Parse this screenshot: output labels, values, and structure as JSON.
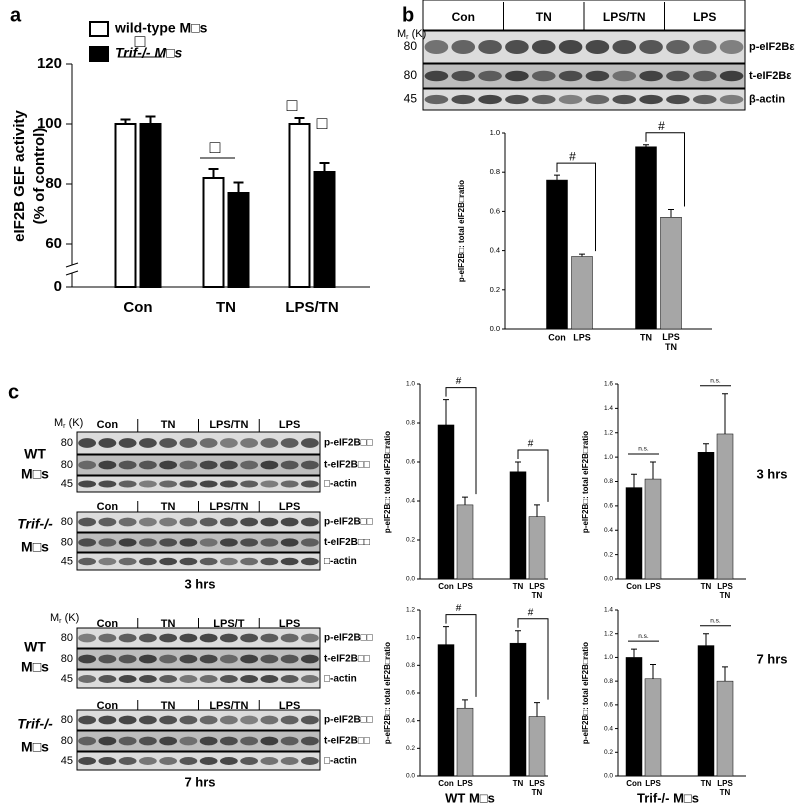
{
  "panel_labels": [
    "a",
    "b",
    "c"
  ],
  "chart_data": [
    {
      "type": "grouped_bar",
      "y_label": [
        "eIF2B GEF activity",
        "(% of control)"
      ],
      "categories": [
        "Con",
        "TN",
        "LPS/TN"
      ],
      "series": [
        {
          "name": "wild-type M□s",
          "color": "#ffffff",
          "values": [
            100,
            82,
            100
          ],
          "errors": [
            1.5,
            3,
            2
          ]
        },
        {
          "name": "Trif-/- M□s",
          "color": "#000000",
          "values": [
            100,
            77,
            84
          ],
          "errors": [
            2.5,
            3.5,
            3
          ]
        }
      ],
      "ylim": [
        0,
        120
      ],
      "yticks": [
        0,
        60,
        80,
        100,
        120
      ],
      "axis_break": true,
      "annotations": [
        "□",
        "□",
        "□",
        "□"
      ]
    },
    {
      "type": "bar",
      "y_label": "p-eIF2B□: total eIF2B□ratio",
      "categories": [
        "Con",
        "LPS",
        "TN",
        "LPS TN"
      ],
      "values": [
        0.76,
        0.37,
        0.93,
        0.57
      ],
      "errors": [
        0.025,
        0.012,
        0.01,
        0.04
      ],
      "colors": [
        "#000000",
        "#a6a6a6",
        "#000000",
        "#a6a6a6"
      ],
      "ylim": [
        0,
        1
      ],
      "yticks": [
        {
          "value": 0,
          "label": "0.0"
        },
        {
          "value": 0.2,
          "label": "0.2"
        },
        {
          "value": 0.4,
          "label": "0.4"
        },
        {
          "value": 0.6,
          "label": "0.6"
        },
        {
          "value": 0.8,
          "label": "0.8"
        },
        {
          "value": 1,
          "label": "1.0"
        }
      ],
      "annotations": [
        "#",
        "#"
      ]
    },
    {
      "type": "bar",
      "y_label": "p-eIF2B□: total eIF2B□ratio",
      "categories": [
        "Con",
        "LPS",
        "TN",
        "LPS TN"
      ],
      "values": [
        0.79,
        0.38,
        0.55,
        0.32
      ],
      "errors": [
        0.13,
        0.04,
        0.05,
        0.06
      ],
      "colors": [
        "#000000",
        "#a6a6a6",
        "#000000",
        "#a6a6a6"
      ],
      "ylim": [
        0,
        1
      ],
      "yticks": [
        {
          "value": 0,
          "label": "0.0"
        },
        {
          "value": 0.2,
          "label": "0.2"
        },
        {
          "value": 0.4,
          "label": "0.4"
        },
        {
          "value": 0.6,
          "label": "0.6"
        },
        {
          "value": 0.8,
          "label": "0.8"
        },
        {
          "value": 1,
          "label": "1.0"
        }
      ],
      "annotations": [
        "#",
        "#"
      ]
    },
    {
      "type": "bar",
      "y_label": "p-eIF2B□: total eIF2B□ratio",
      "row_label": "3 hrs",
      "categories": [
        "Con",
        "LPS",
        "TN",
        "LPS TN"
      ],
      "values": [
        0.75,
        0.82,
        1.04,
        1.19
      ],
      "errors": [
        0.11,
        0.14,
        0.07,
        0.33
      ],
      "colors": [
        "#000000",
        "#a6a6a6",
        "#000000",
        "#a6a6a6"
      ],
      "ylim": [
        0,
        1.6
      ],
      "yticks": [
        {
          "value": 0,
          "label": "0.0"
        },
        {
          "value": 0.2,
          "label": "0.2"
        },
        {
          "value": 0.4,
          "label": "0.4"
        },
        {
          "value": 0.6,
          "label": "0.6"
        },
        {
          "value": 0.8,
          "label": "0.8"
        },
        {
          "value": 1,
          "label": "1.0"
        },
        {
          "value": 1.2,
          "label": "1.2"
        },
        {
          "value": 1.4,
          "label": "1.4"
        },
        {
          "value": 1.6,
          "label": "1.6"
        }
      ],
      "annotations": [
        "n.s.",
        "n.s."
      ]
    },
    {
      "type": "bar",
      "y_label": "p-eIF2B□: total eIF2B□ratio",
      "x_label": "WT M□s",
      "categories": [
        "Con",
        "LPS",
        "TN",
        "LPS TN"
      ],
      "values": [
        0.95,
        0.49,
        0.96,
        0.43
      ],
      "errors": [
        0.13,
        0.06,
        0.09,
        0.1
      ],
      "colors": [
        "#000000",
        "#a6a6a6",
        "#000000",
        "#a6a6a6"
      ],
      "ylim": [
        0,
        1.2
      ],
      "yticks": [
        {
          "value": 0,
          "label": "0.0"
        },
        {
          "value": 0.2,
          "label": "0.2"
        },
        {
          "value": 0.4,
          "label": "0.4"
        },
        {
          "value": 0.6,
          "label": "0.6"
        },
        {
          "value": 0.8,
          "label": "0.8"
        },
        {
          "value": 1,
          "label": "1.0"
        },
        {
          "value": 1.2,
          "label": "1.2"
        }
      ],
      "annotations": [
        "#",
        "#"
      ]
    },
    {
      "type": "bar",
      "y_label": "p-eIF2B□: total eIF2B□ratio",
      "x_label": "Trif-/- M□s",
      "row_label": "7 hrs",
      "categories": [
        "Con",
        "LPS",
        "TN",
        "LPS TN"
      ],
      "values": [
        1.0,
        0.82,
        1.1,
        0.8
      ],
      "errors": [
        0.07,
        0.12,
        0.1,
        0.12
      ],
      "colors": [
        "#000000",
        "#a6a6a6",
        "#000000",
        "#a6a6a6"
      ],
      "ylim": [
        0,
        1.4
      ],
      "yticks": [
        {
          "value": 0,
          "label": "0.0"
        },
        {
          "value": 0.2,
          "label": "0.2"
        },
        {
          "value": 0.4,
          "label": "0.4"
        },
        {
          "value": 0.6,
          "label": "0.6"
        },
        {
          "value": 0.8,
          "label": "0.8"
        },
        {
          "value": 1,
          "label": "1.0"
        },
        {
          "value": 1.2,
          "label": "1.2"
        },
        {
          "value": 1.4,
          "label": "1.4"
        }
      ],
      "annotations": [
        "n.s.",
        "n.s."
      ]
    }
  ],
  "blots": [
    {
      "mr_label": [
        "M",
        "r",
        " (K)"
      ],
      "groups": [
        "Con",
        "TN",
        "LPS/TN",
        "LPS"
      ],
      "rows": [
        {
          "mw": "80",
          "label": "p-eIF2Bε"
        },
        {
          "mw": "80",
          "label": "t-eIF2Bε"
        },
        {
          "mw": "45",
          "label": "β-actin"
        }
      ]
    },
    {
      "mr_label": [
        "M",
        "r",
        " (K)"
      ],
      "side_label": [
        "WT",
        "M□s"
      ],
      "groups": [
        "Con",
        "TN",
        "LPS/TN",
        "LPS"
      ],
      "rows": [
        {
          "mw": "80",
          "label": "p-eIF2B□□"
        },
        {
          "mw": "80",
          "label": "t-eIF2B□□"
        },
        {
          "mw": "45",
          "label": "□-actin"
        }
      ]
    },
    {
      "side_label": [
        "Trif-/-",
        "M□s"
      ],
      "groups": [
        "Con",
        "TN",
        "LPS/TN",
        "LPS"
      ],
      "caption": "3 hrs",
      "rows": [
        {
          "mw": "80",
          "label": "p-eIF2B□□"
        },
        {
          "mw": "80",
          "label": "t-eIF2B□□"
        },
        {
          "mw": "45",
          "label": "□-actin"
        }
      ]
    },
    {
      "mr_label": [
        "M",
        "r",
        " (K)"
      ],
      "side_label": [
        "WT",
        "M□s"
      ],
      "groups": [
        "Con",
        "TN",
        "LPS/T",
        "LPS"
      ],
      "rows": [
        {
          "mw": "80",
          "label": "p-eIF2B□□"
        },
        {
          "mw": "80",
          "label": "t-eIF2B□□"
        },
        {
          "mw": "45",
          "label": "□-actin"
        }
      ]
    },
    {
      "side_label": [
        "Trif-/-",
        "M□s"
      ],
      "groups": [
        "Con",
        "TN",
        "LPS/TN",
        "LPS"
      ],
      "caption": "7 hrs",
      "rows": [
        {
          "mw": "80",
          "label": "p-eIF2B□□"
        },
        {
          "mw": "80",
          "label": "t-eIF2B□□"
        },
        {
          "mw": "45",
          "label": "□-actin"
        }
      ]
    }
  ]
}
